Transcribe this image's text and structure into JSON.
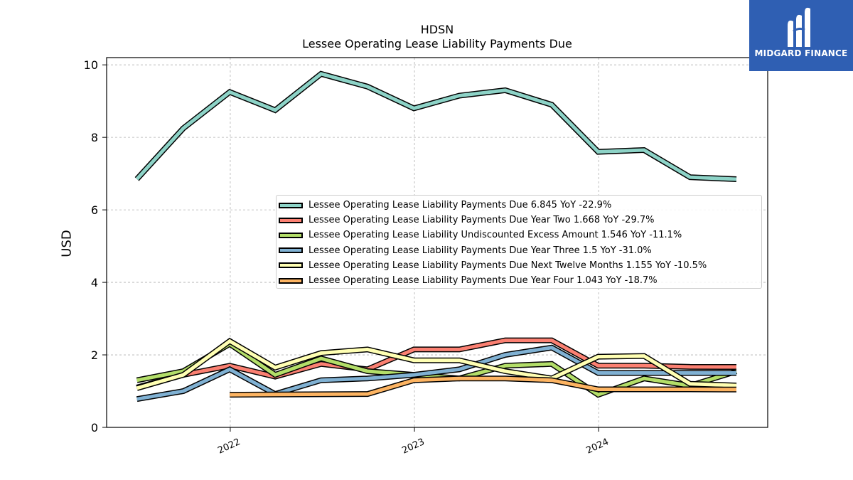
{
  "header": {
    "title": "HDSN",
    "subtitle": "Lessee Operating Lease Liability Payments Due"
  },
  "branding": {
    "logo_text": "MIDGARD FINANCE",
    "logo_icon": "midgard-logo-icon",
    "background_color": "#2f5fb3"
  },
  "chart_data": {
    "type": "line",
    "ylabel": "USD",
    "xlabel": "",
    "ylim": [
      0,
      10.2
    ],
    "yticks": [
      0,
      2,
      4,
      6,
      8,
      10
    ],
    "xlim": [
      "2021-05-01",
      "2024-12-01"
    ],
    "xticks": [
      {
        "date": "2022-01-01",
        "label": "2022"
      },
      {
        "date": "2023-01-01",
        "label": "2023"
      },
      {
        "date": "2024-01-01",
        "label": "2024"
      }
    ],
    "grid": true,
    "legend_position": "center-right",
    "series": [
      {
        "name": "Lessee Operating Lease Liability Payments Due  6.845 YoY -22.9%",
        "color": "#8dd3c7",
        "points": [
          [
            "2021-06-30",
            6.85
          ],
          [
            "2021-09-30",
            8.25
          ],
          [
            "2021-12-31",
            9.25
          ],
          [
            "2022-03-31",
            8.75
          ],
          [
            "2022-06-30",
            9.75
          ],
          [
            "2022-09-30",
            9.4
          ],
          [
            "2022-12-31",
            8.8
          ],
          [
            "2023-03-31",
            9.15
          ],
          [
            "2023-06-30",
            9.3
          ],
          [
            "2023-09-30",
            8.9
          ],
          [
            "2023-12-31",
            7.6
          ],
          [
            "2024-03-31",
            7.65
          ],
          [
            "2024-06-30",
            6.9
          ],
          [
            "2024-09-30",
            6.845
          ]
        ]
      },
      {
        "name": "Lessee Operating Lease Liability Payments Due Year Two  1.668 YoY -29.7%",
        "color": "#fb8072",
        "points": [
          [
            "2021-06-30",
            1.1
          ],
          [
            "2021-09-30",
            1.45
          ],
          [
            "2021-12-31",
            1.7
          ],
          [
            "2022-03-31",
            1.4
          ],
          [
            "2022-06-30",
            1.75
          ],
          [
            "2022-09-30",
            1.6
          ],
          [
            "2022-12-31",
            2.15
          ],
          [
            "2023-03-31",
            2.15
          ],
          [
            "2023-06-30",
            2.4
          ],
          [
            "2023-09-30",
            2.4
          ],
          [
            "2023-12-31",
            1.7
          ],
          [
            "2024-03-31",
            1.7
          ],
          [
            "2024-06-30",
            1.67
          ],
          [
            "2024-09-30",
            1.668
          ]
        ]
      },
      {
        "name": "Lessee Operating Lease Liability Undiscounted Excess Amount  1.546 YoY -11.1%",
        "color": "#b3de69",
        "points": [
          [
            "2021-06-30",
            1.3
          ],
          [
            "2021-09-30",
            1.55
          ],
          [
            "2021-12-31",
            2.3
          ],
          [
            "2022-03-31",
            1.45
          ],
          [
            "2022-06-30",
            1.9
          ],
          [
            "2022-09-30",
            1.55
          ],
          [
            "2022-12-31",
            1.45
          ],
          [
            "2023-03-31",
            1.35
          ],
          [
            "2023-06-30",
            1.7
          ],
          [
            "2023-09-30",
            1.75
          ],
          [
            "2023-12-31",
            0.9
          ],
          [
            "2024-03-31",
            1.35
          ],
          [
            "2024-06-30",
            1.15
          ],
          [
            "2024-09-30",
            1.546
          ]
        ]
      },
      {
        "name": "Lessee Operating Lease Liability Payments Due Year Three  1.5 YoY -31.0%",
        "color": "#80b1d3",
        "points": [
          [
            "2021-06-30",
            0.78
          ],
          [
            "2021-09-30",
            1.0
          ],
          [
            "2021-12-31",
            1.6
          ],
          [
            "2022-03-31",
            0.92
          ],
          [
            "2022-06-30",
            1.3
          ],
          [
            "2022-09-30",
            1.35
          ],
          [
            "2022-12-31",
            1.45
          ],
          [
            "2023-03-31",
            1.6
          ],
          [
            "2023-06-30",
            2.0
          ],
          [
            "2023-09-30",
            2.2
          ],
          [
            "2023-12-31",
            1.5
          ],
          [
            "2024-03-31",
            1.5
          ],
          [
            "2024-06-30",
            1.5
          ],
          [
            "2024-09-30",
            1.5
          ]
        ]
      },
      {
        "name": "Lessee Operating Lease Liability Payments Due Next Twelve Months  1.155 YoY -10.5%",
        "color": "#ffffb3",
        "points": [
          [
            "2021-06-30",
            1.08
          ],
          [
            "2021-09-30",
            1.45
          ],
          [
            "2021-12-31",
            2.38
          ],
          [
            "2022-03-31",
            1.65
          ],
          [
            "2022-06-30",
            2.05
          ],
          [
            "2022-09-30",
            2.15
          ],
          [
            "2022-12-31",
            1.85
          ],
          [
            "2023-03-31",
            1.85
          ],
          [
            "2023-06-30",
            1.55
          ],
          [
            "2023-09-30",
            1.35
          ],
          [
            "2023-12-31",
            1.95
          ],
          [
            "2024-03-31",
            1.97
          ],
          [
            "2024-06-30",
            1.2
          ],
          [
            "2024-09-30",
            1.155
          ]
        ]
      },
      {
        "name": "Lessee Operating Lease Liability Payments Due Year Four  1.043 YoY -18.7%",
        "color": "#fdb462",
        "points": [
          [
            "2021-12-31",
            0.9
          ],
          [
            "2022-09-30",
            0.92
          ],
          [
            "2022-12-31",
            1.3
          ],
          [
            "2023-03-31",
            1.35
          ],
          [
            "2023-06-30",
            1.35
          ],
          [
            "2023-09-30",
            1.3
          ],
          [
            "2023-12-31",
            1.05
          ],
          [
            "2024-03-31",
            1.05
          ],
          [
            "2024-06-30",
            1.05
          ],
          [
            "2024-09-30",
            1.043
          ]
        ]
      }
    ]
  }
}
